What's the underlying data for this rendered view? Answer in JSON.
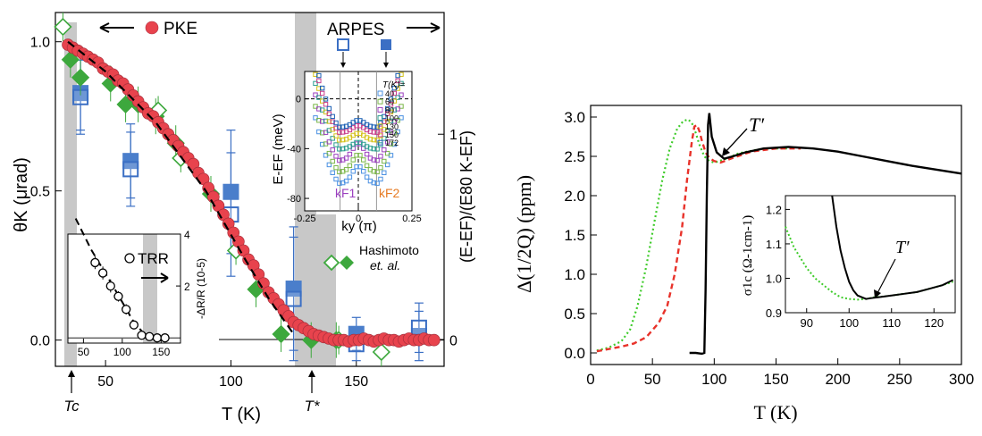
{
  "chart_data": [
    {
      "type": "scatter",
      "xlabel": "T (K)",
      "ylabel_left": "θK (μrad)",
      "ylabel_right": "(E-EF)/(E80 K-EF)",
      "xlim": [
        30,
        185
      ],
      "ylim_left": [
        -0.07,
        1.08
      ],
      "ylim_right": [
        0,
        1.6
      ],
      "xticks": [
        "50",
        "100",
        "150"
      ],
      "yticks_left": [
        "0.0",
        "0.5",
        "1.0"
      ],
      "yticks_right": [
        "0",
        "1"
      ],
      "markers": [
        "Tc",
        "T*"
      ],
      "labels": {
        "pke": "PKE",
        "arpes": "ARPES",
        "hashimoto": "Hashimoto",
        "etal": "et. al."
      },
      "series": [
        {
          "name": "PKE",
          "x": [
            35,
            37,
            39,
            41,
            43,
            45,
            47,
            49,
            51,
            53,
            55,
            57,
            59,
            61,
            63,
            65,
            67,
            69,
            71,
            73,
            75,
            77,
            79,
            81,
            83,
            85,
            87,
            89,
            91,
            93,
            95,
            97,
            99,
            101,
            103,
            105,
            107,
            109,
            111,
            113,
            115,
            117,
            119,
            121,
            123,
            125,
            127,
            129,
            131,
            133,
            135,
            137,
            139,
            141,
            143,
            145,
            147,
            149,
            151,
            153,
            155,
            157,
            159,
            161,
            163,
            165,
            167,
            169,
            171,
            173,
            175,
            177,
            179,
            181
          ],
          "y": [
            0.99,
            0.98,
            0.97,
            0.96,
            0.95,
            0.94,
            0.93,
            0.91,
            0.9,
            0.89,
            0.87,
            0.86,
            0.84,
            0.82,
            0.8,
            0.78,
            0.76,
            0.75,
            0.73,
            0.71,
            0.69,
            0.67,
            0.65,
            0.63,
            0.61,
            0.59,
            0.56,
            0.54,
            0.51,
            0.48,
            0.45,
            0.42,
            0.39,
            0.36,
            0.33,
            0.3,
            0.27,
            0.25,
            0.22,
            0.19,
            0.16,
            0.14,
            0.12,
            0.1,
            0.08,
            0.06,
            0.05,
            0.04,
            0.03,
            0.02,
            0.015,
            0.01,
            0.005,
            0.0,
            0.0,
            0.0,
            -0.005,
            0.0,
            0.0,
            0.005,
            0.0,
            -0.005,
            0.0,
            0.005,
            0.0,
            0.0,
            -0.005,
            0.0,
            0.005,
            0.0,
            0.0,
            0.005,
            0.0,
            0.0
          ]
        },
        {
          "name": "ARPES kF1",
          "x": [
            40,
            60,
            100,
            125,
            150,
            175
          ],
          "y_right": [
            1.18,
            0.83,
            0.61,
            0.2,
            -0.02,
            0.06
          ],
          "err": [
            0.18,
            0.18,
            0.3,
            0.3,
            0.08,
            0.12
          ]
        },
        {
          "name": "ARPES kF2",
          "x": [
            40,
            60,
            100,
            125,
            150,
            175
          ],
          "y_right": [
            1.2,
            0.87,
            0.72,
            0.25,
            0.03,
            0.02
          ],
          "err": [
            0.18,
            0.18,
            0.3,
            0.3,
            0.08,
            0.12
          ]
        },
        {
          "name": "Hashimoto open",
          "x": [
            33,
            71,
            80,
            102,
            143,
            160
          ],
          "y": [
            1.05,
            0.77,
            0.61,
            0.3,
            0.0,
            -0.04
          ]
        },
        {
          "name": "Hashimoto filled",
          "x": [
            36,
            40,
            52,
            58,
            63,
            70,
            78,
            92,
            110,
            120,
            132,
            142
          ],
          "y": [
            0.94,
            0.88,
            0.86,
            0.79,
            0.79,
            0.75,
            0.66,
            0.49,
            0.17,
            0.02,
            0.0,
            0.0
          ]
        }
      ],
      "guide_line": {
        "x": [
          35,
          50,
          70,
          90,
          105,
          115,
          125
        ],
        "y": [
          1.0,
          0.9,
          0.73,
          0.5,
          0.28,
          0.14,
          0.02
        ]
      }
    },
    {
      "type": "line",
      "title": "TRR",
      "ylabel": "-ΔR/R (10-5)",
      "xticks": [
        "50",
        "100",
        "150"
      ],
      "yticks": [
        "2",
        "4"
      ],
      "xlim": [
        30,
        175
      ],
      "ylim": [
        -0.2,
        4
      ],
      "x": [
        65,
        75,
        85,
        95,
        105,
        115,
        125,
        135,
        145,
        155
      ],
      "y": [
        2.9,
        2.5,
        2.0,
        1.6,
        1.1,
        0.5,
        0.1,
        0.05,
        0.0,
        0.0
      ],
      "err": [
        0.25,
        0.25,
        0.25,
        0.2,
        0.2,
        0.15,
        0.1,
        0.1,
        0.1,
        0.1
      ]
    },
    {
      "type": "line",
      "xlabel": "ky (π)",
      "ylabel": "E-EF (meV)",
      "xlim": [
        -0.25,
        0.25
      ],
      "ylim": [
        -90,
        22
      ],
      "xticks": [
        "-0.25",
        "0",
        "0.25"
      ],
      "yticks": [
        "0",
        "-40",
        "-80"
      ],
      "legend_title": "T(K)=",
      "legend": [
        "40",
        "60",
        "80",
        "100",
        "130",
        "150",
        "172"
      ],
      "labels": {
        "kf1": "kF1",
        "kf2": "kF2"
      },
      "colors": [
        "#4a90e2",
        "#7ab648",
        "#9b3fbf",
        "#2a9d8f",
        "#d4c21a",
        "#c83c8a",
        "#1a5fb4"
      ],
      "series_min_energy": [
        -68,
        -60,
        -52,
        -44,
        -38,
        -33,
        -30
      ]
    },
    {
      "type": "line",
      "xlabel": "T (K)",
      "ylabel": "Δ(1/2Q) (ppm)",
      "xlim": [
        0,
        300
      ],
      "ylim": [
        -0.1,
        3.2
      ],
      "xticks": [
        "0",
        "50",
        "100",
        "150",
        "200",
        "250",
        "300"
      ],
      "yticks": [
        "0.0",
        "0.5",
        "1.0",
        "1.5",
        "2.0",
        "2.5",
        "3.0"
      ],
      "annotation": "T′",
      "series": [
        {
          "name": "black",
          "color": "#000000",
          "x": [
            80,
            85,
            90,
            92,
            93,
            94,
            95,
            96,
            98,
            102,
            108,
            115,
            125,
            140,
            160,
            180,
            200,
            220,
            240,
            260,
            280,
            300
          ],
          "y": [
            0.0,
            0.0,
            -0.01,
            0.0,
            0.8,
            2.0,
            2.9,
            3.05,
            2.75,
            2.55,
            2.47,
            2.5,
            2.55,
            2.6,
            2.62,
            2.6,
            2.56,
            2.5,
            2.44,
            2.38,
            2.33,
            2.28
          ]
        },
        {
          "name": "red",
          "color": "#e8322a",
          "x": [
            5,
            15,
            25,
            35,
            45,
            55,
            62,
            68,
            74,
            78,
            82,
            84,
            86,
            88,
            90,
            93,
            96,
            100,
            105,
            115,
            130,
            150,
            170
          ],
          "y": [
            0.02,
            0.05,
            0.08,
            0.12,
            0.2,
            0.38,
            0.6,
            1.0,
            1.6,
            2.2,
            2.7,
            2.88,
            2.9,
            2.82,
            2.7,
            2.55,
            2.48,
            2.44,
            2.42,
            2.48,
            2.56,
            2.6,
            2.6
          ]
        },
        {
          "name": "green",
          "color": "#3ecb2a",
          "x": [
            5,
            15,
            25,
            32,
            38,
            45,
            52,
            58,
            64,
            70,
            75,
            79,
            82,
            85,
            88,
            92,
            96,
            100,
            108,
            120,
            140,
            160
          ],
          "y": [
            0.03,
            0.07,
            0.15,
            0.3,
            0.6,
            1.1,
            1.7,
            2.2,
            2.6,
            2.85,
            2.95,
            2.97,
            2.92,
            2.8,
            2.65,
            2.5,
            2.44,
            2.42,
            2.46,
            2.54,
            2.6,
            2.6
          ]
        }
      ]
    },
    {
      "type": "line",
      "ylabel": "σ1c (Ω-1cm-1)",
      "xlim": [
        85,
        125
      ],
      "ylim": [
        0.9,
        1.24
      ],
      "xticks": [
        "90",
        "100",
        "110",
        "120"
      ],
      "yticks": [
        "0.9",
        "1.0",
        "1.1",
        "1.2"
      ],
      "annotation": "T′",
      "series": [
        {
          "name": "black",
          "color": "#000000",
          "x": [
            96,
            97,
            98,
            99,
            100,
            101,
            102,
            103,
            104,
            105,
            107,
            110,
            113,
            116,
            119,
            122,
            124.5
          ],
          "y": [
            1.24,
            1.15,
            1.08,
            1.03,
            0.99,
            0.965,
            0.95,
            0.945,
            0.94,
            0.942,
            0.945,
            0.95,
            0.955,
            0.96,
            0.97,
            0.98,
            0.995
          ]
        },
        {
          "name": "green",
          "color": "#3ecb2a",
          "x": [
            85,
            86,
            87,
            88,
            89,
            90,
            92,
            94,
            96,
            98,
            100,
            102,
            104,
            106,
            108,
            110,
            113,
            116,
            119,
            122,
            124.5
          ],
          "y": [
            1.15,
            1.12,
            1.09,
            1.07,
            1.05,
            1.03,
            1.0,
            0.98,
            0.96,
            0.945,
            0.94,
            0.938,
            0.94,
            0.945,
            0.947,
            0.95,
            0.955,
            0.96,
            0.97,
            0.98,
            0.99
          ]
        }
      ]
    }
  ]
}
